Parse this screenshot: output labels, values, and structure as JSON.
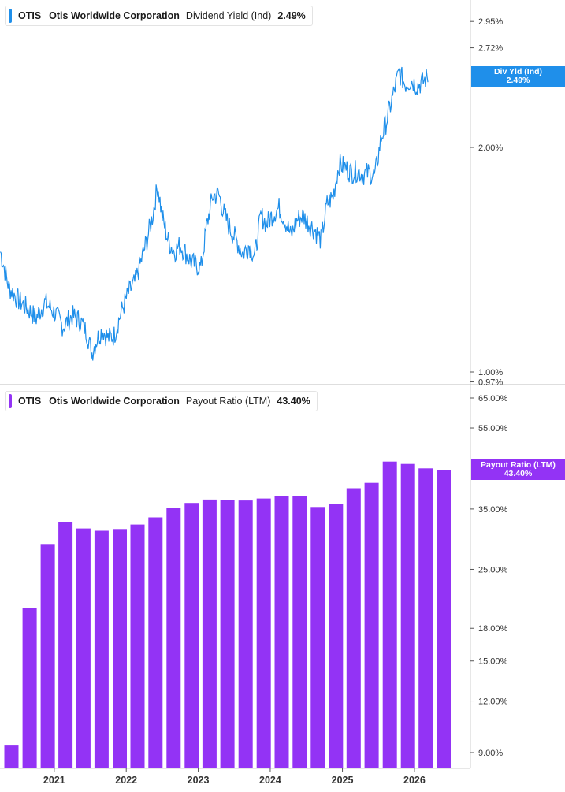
{
  "colors": {
    "yield": "#1f8fea",
    "payout": "#9333f5",
    "grid": "#e6e6e6",
    "axis": "#555555"
  },
  "legend_top": {
    "ticker": "OTIS",
    "company": "Otis Worldwide Corporation",
    "metric": "Dividend Yield (Ind)",
    "value": "2.49%"
  },
  "legend_bottom": {
    "ticker": "OTIS",
    "company": "Otis Worldwide Corporation",
    "metric": "Payout Ratio (LTM)",
    "value": "43.40%"
  },
  "tags": {
    "yield": {
      "label": "Div Yld (Ind)",
      "value": "2.49%"
    },
    "payout": {
      "label": "Payout Ratio (LTM)",
      "value": "43.40%"
    }
  },
  "chart_data": [
    {
      "type": "line",
      "scale": "log",
      "series": [
        {
          "name": "Dividend Yield (Ind)",
          "points": [
            [
              "2020-04-03",
              1.45
            ],
            [
              "2020-05-15",
              1.3
            ],
            [
              "2020-07-01",
              1.25
            ],
            [
              "2020-08-15",
              1.22
            ],
            [
              "2020-10-01",
              1.18
            ],
            [
              "2020-11-15",
              1.24
            ],
            [
              "2021-01-04",
              1.2
            ],
            [
              "2021-02-15",
              1.15
            ],
            [
              "2021-04-01",
              1.19
            ],
            [
              "2021-05-15",
              1.17
            ],
            [
              "2021-06-15",
              1.13
            ],
            [
              "2021-07-10",
              1.06
            ],
            [
              "2021-08-01",
              1.1
            ],
            [
              "2021-09-01",
              1.14
            ],
            [
              "2021-10-01",
              1.11
            ],
            [
              "2021-11-01",
              1.12
            ],
            [
              "2021-12-10",
              1.21
            ],
            [
              "2022-01-15",
              1.28
            ],
            [
              "2022-02-15",
              1.32
            ],
            [
              "2022-03-15",
              1.4
            ],
            [
              "2022-04-15",
              1.5
            ],
            [
              "2022-05-15",
              1.62
            ],
            [
              "2022-06-10",
              1.78
            ],
            [
              "2022-07-01",
              1.62
            ],
            [
              "2022-08-01",
              1.5
            ],
            [
              "2022-09-01",
              1.45
            ],
            [
              "2022-10-01",
              1.48
            ],
            [
              "2022-11-01",
              1.44
            ],
            [
              "2022-12-01",
              1.4
            ],
            [
              "2023-01-15",
              1.38
            ],
            [
              "2023-02-15",
              1.58
            ],
            [
              "2023-03-15",
              1.72
            ],
            [
              "2023-04-15",
              1.73
            ],
            [
              "2023-05-15",
              1.62
            ],
            [
              "2023-06-15",
              1.55
            ],
            [
              "2023-07-15",
              1.5
            ],
            [
              "2023-08-15",
              1.44
            ],
            [
              "2023-09-15",
              1.48
            ],
            [
              "2023-10-15",
              1.43
            ],
            [
              "2023-11-15",
              1.62
            ],
            [
              "2023-12-15",
              1.58
            ],
            [
              "2024-01-15",
              1.63
            ],
            [
              "2024-02-15",
              1.66
            ],
            [
              "2024-03-15",
              1.6
            ],
            [
              "2024-04-15",
              1.52
            ],
            [
              "2024-05-15",
              1.6
            ],
            [
              "2024-06-15",
              1.62
            ],
            [
              "2024-07-15",
              1.58
            ],
            [
              "2024-08-15",
              1.55
            ],
            [
              "2024-09-15",
              1.5
            ],
            [
              "2024-10-15",
              1.68
            ],
            [
              "2024-11-15",
              1.72
            ],
            [
              "2024-12-15",
              1.9
            ],
            [
              "2025-01-15",
              1.88
            ],
            [
              "2025-02-15",
              1.85
            ],
            [
              "2025-03-15",
              1.86
            ],
            [
              "2025-04-15",
              1.84
            ],
            [
              "2025-05-15",
              1.85
            ],
            [
              "2025-06-15",
              1.83
            ],
            [
              "2025-07-15",
              2.05
            ],
            [
              "2025-08-15",
              2.18
            ],
            [
              "2025-09-15",
              2.35
            ],
            [
              "2025-10-15",
              2.52
            ],
            [
              "2025-11-15",
              2.43
            ],
            [
              "2025-12-15",
              2.46
            ],
            [
              "2026-01-15",
              2.42
            ],
            [
              "2026-02-15",
              2.45
            ],
            [
              "2026-03-10",
              2.49
            ]
          ]
        }
      ],
      "y_ticks": [
        "2.95%",
        "2.72%",
        "2.00%",
        "1.00%",
        "0.97%"
      ],
      "ylim": [
        0.97,
        3.1
      ]
    },
    {
      "type": "bar",
      "scale": "log",
      "series": [
        {
          "name": "Payout Ratio (LTM)",
          "points": [
            [
              "2020-06-30",
              9.4
            ],
            [
              "2020-09-30",
              20.2
            ],
            [
              "2020-12-31",
              28.8
            ],
            [
              "2021-03-31",
              32.6
            ],
            [
              "2021-06-30",
              31.4
            ],
            [
              "2021-09-30",
              31.0
            ],
            [
              "2021-12-31",
              31.3
            ],
            [
              "2022-03-31",
              32.1
            ],
            [
              "2022-06-30",
              33.4
            ],
            [
              "2022-09-30",
              35.3
            ],
            [
              "2022-12-31",
              36.2
            ],
            [
              "2023-03-31",
              36.9
            ],
            [
              "2023-06-30",
              36.8
            ],
            [
              "2023-09-30",
              36.7
            ],
            [
              "2023-12-31",
              37.1
            ],
            [
              "2024-03-31",
              37.6
            ],
            [
              "2024-06-30",
              37.6
            ],
            [
              "2024-09-30",
              35.4
            ],
            [
              "2024-12-31",
              36.0
            ],
            [
              "2025-03-31",
              39.3
            ],
            [
              "2025-06-30",
              40.5
            ],
            [
              "2025-09-30",
              45.6
            ],
            [
              "2025-12-31",
              45.0
            ],
            [
              "2026-03-31",
              43.9
            ],
            [
              "2026-06-30",
              43.4
            ]
          ]
        }
      ],
      "y_ticks": [
        "65.00%",
        "55.00%",
        "35.00%",
        "25.00%",
        "18.00%",
        "15.00%",
        "12.00%",
        "9.00%"
      ],
      "ylim": [
        8.5,
        68
      ]
    }
  ],
  "x_axis": {
    "ticks": [
      "2021",
      "2022",
      "2023",
      "2024",
      "2025",
      "2026"
    ]
  }
}
